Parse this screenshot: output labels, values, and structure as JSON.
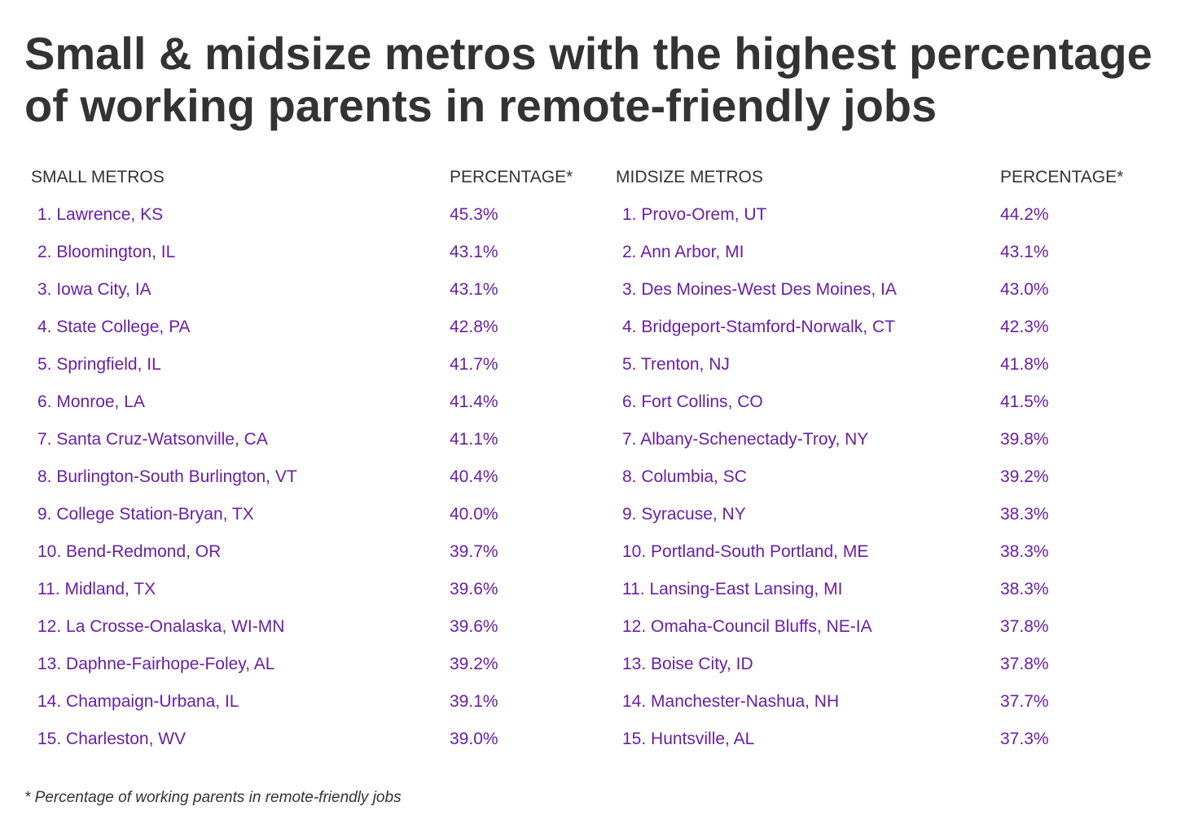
{
  "title": "Small & midsize metros with the highest percentage of working parents in remote-friendly jobs",
  "footnote": "* Percentage of working parents in remote-friendly jobs",
  "colors": {
    "title": "#333333",
    "header": "#333333",
    "row_text": "#6a1fa3"
  },
  "chart_data": {
    "type": "table",
    "title": "Small & midsize metros with the highest percentage of working parents in remote-friendly jobs",
    "tables": [
      {
        "name_header": "SMALL METROS",
        "value_header": "PERCENTAGE*",
        "rows": [
          {
            "rank": "1.",
            "name": "Lawrence, KS",
            "value": 45.3,
            "label": "45.3%"
          },
          {
            "rank": "2.",
            "name": "Bloomington, IL",
            "value": 43.1,
            "label": "43.1%"
          },
          {
            "rank": "3.",
            "name": "Iowa City, IA",
            "value": 43.1,
            "label": "43.1%"
          },
          {
            "rank": "4.",
            "name": "State College, PA",
            "value": 42.8,
            "label": "42.8%"
          },
          {
            "rank": "5.",
            "name": "Springfield, IL",
            "value": 41.7,
            "label": "41.7%"
          },
          {
            "rank": "6.",
            "name": "Monroe, LA",
            "value": 41.4,
            "label": "41.4%"
          },
          {
            "rank": "7.",
            "name": "Santa Cruz-Watsonville, CA",
            "value": 41.1,
            "label": "41.1%"
          },
          {
            "rank": "8.",
            "name": "Burlington-South Burlington, VT",
            "value": 40.4,
            "label": "40.4%"
          },
          {
            "rank": "9.",
            "name": "College Station-Bryan, TX",
            "value": 40.0,
            "label": "40.0%"
          },
          {
            "rank": "10.",
            "name": "Bend-Redmond, OR",
            "value": 39.7,
            "label": "39.7%"
          },
          {
            "rank": "11.",
            "name": "Midland, TX",
            "value": 39.6,
            "label": "39.6%"
          },
          {
            "rank": "12.",
            "name": "La Crosse-Onalaska, WI-MN",
            "value": 39.6,
            "label": "39.6%"
          },
          {
            "rank": "13.",
            "name": "Daphne-Fairhope-Foley, AL",
            "value": 39.2,
            "label": "39.2%"
          },
          {
            "rank": "14.",
            "name": "Champaign-Urbana, IL",
            "value": 39.1,
            "label": "39.1%"
          },
          {
            "rank": "15.",
            "name": "Charleston, WV",
            "value": 39.0,
            "label": "39.0%"
          }
        ]
      },
      {
        "name_header": "MIDSIZE METROS",
        "value_header": "PERCENTAGE*",
        "rows": [
          {
            "rank": "1.",
            "name": "Provo-Orem, UT",
            "value": 44.2,
            "label": "44.2%"
          },
          {
            "rank": "2.",
            "name": "Ann Arbor, MI",
            "value": 43.1,
            "label": "43.1%"
          },
          {
            "rank": "3.",
            "name": "Des Moines-West Des Moines, IA",
            "value": 43.0,
            "label": "43.0%"
          },
          {
            "rank": "4.",
            "name": "Bridgeport-Stamford-Norwalk, CT",
            "value": 42.3,
            "label": "42.3%"
          },
          {
            "rank": "5.",
            "name": "Trenton, NJ",
            "value": 41.8,
            "label": "41.8%"
          },
          {
            "rank": "6.",
            "name": "Fort Collins, CO",
            "value": 41.5,
            "label": "41.5%"
          },
          {
            "rank": "7.",
            "name": "Albany-Schenectady-Troy, NY",
            "value": 39.8,
            "label": "39.8%"
          },
          {
            "rank": "8.",
            "name": "Columbia, SC",
            "value": 39.2,
            "label": "39.2%"
          },
          {
            "rank": "9.",
            "name": "Syracuse, NY",
            "value": 38.3,
            "label": "38.3%"
          },
          {
            "rank": "10.",
            "name": "Portland-South Portland, ME",
            "value": 38.3,
            "label": "38.3%"
          },
          {
            "rank": "11.",
            "name": "Lansing-East Lansing, MI",
            "value": 38.3,
            "label": "38.3%"
          },
          {
            "rank": "12.",
            "name": "Omaha-Council Bluffs, NE-IA",
            "value": 37.8,
            "label": "37.8%"
          },
          {
            "rank": "13.",
            "name": "Boise City, ID",
            "value": 37.8,
            "label": "37.8%"
          },
          {
            "rank": "14.",
            "name": "Manchester-Nashua, NH",
            "value": 37.7,
            "label": "37.7%"
          },
          {
            "rank": "15.",
            "name": "Huntsville, AL",
            "value": 37.3,
            "label": "37.3%"
          }
        ]
      }
    ]
  }
}
